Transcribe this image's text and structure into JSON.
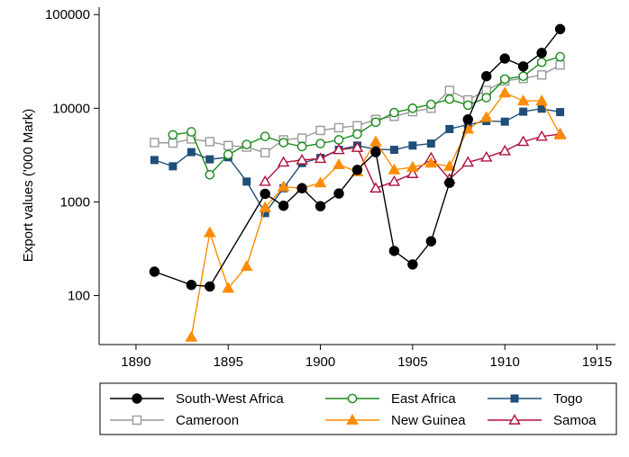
{
  "chart_data": {
    "type": "line",
    "title": "",
    "xlabel": "",
    "ylabel": "Export values ('000 Mark)",
    "xlim": [
      1888,
      1916
    ],
    "ylim": [
      30,
      120000
    ],
    "yscale": "log",
    "xticks": [
      1890,
      1895,
      1900,
      1905,
      1910,
      1915
    ],
    "yticks": [
      100,
      1000,
      10000,
      100000
    ],
    "xtick_labels": [
      "1890",
      "1895",
      "1900",
      "1905",
      "1910",
      "1915"
    ],
    "ytick_labels": [
      "100",
      "1000",
      "10000",
      "100000"
    ],
    "grid": false,
    "legend_position": "bottom",
    "series": [
      {
        "name": "South-West Africa",
        "color": "#000000",
        "marker": "circle-filled",
        "points": [
          [
            1891,
            180
          ],
          [
            1893,
            130
          ],
          [
            1894,
            125
          ],
          [
            1897,
            1220
          ],
          [
            1898,
            910
          ],
          [
            1899,
            1400
          ],
          [
            1900,
            900
          ],
          [
            1901,
            1230
          ],
          [
            1902,
            2200
          ],
          [
            1903,
            3400
          ],
          [
            1904,
            300
          ],
          [
            1905,
            215
          ],
          [
            1906,
            380
          ],
          [
            1907,
            1600
          ],
          [
            1908,
            7600
          ],
          [
            1909,
            22000
          ],
          [
            1910,
            34000
          ],
          [
            1911,
            28000
          ],
          [
            1912,
            39000
          ],
          [
            1913,
            70000
          ]
        ]
      },
      {
        "name": "East Africa",
        "color": "#1a8a1a",
        "marker": "circle-hollow",
        "points": [
          [
            1892,
            5200
          ],
          [
            1893,
            5600
          ],
          [
            1894,
            1950
          ],
          [
            1895,
            3200
          ],
          [
            1896,
            4100
          ],
          [
            1897,
            5000
          ],
          [
            1898,
            4300
          ],
          [
            1899,
            3900
          ],
          [
            1900,
            4200
          ],
          [
            1901,
            4600
          ],
          [
            1902,
            5300
          ],
          [
            1903,
            7100
          ],
          [
            1904,
            9000
          ],
          [
            1905,
            10000
          ],
          [
            1906,
            11000
          ],
          [
            1907,
            12500
          ],
          [
            1908,
            10800
          ],
          [
            1909,
            13000
          ],
          [
            1910,
            20500
          ],
          [
            1911,
            22000
          ],
          [
            1912,
            31000
          ],
          [
            1913,
            35500
          ]
        ]
      },
      {
        "name": "Togo",
        "color": "#1f4e79",
        "marker": "square-filled",
        "points": [
          [
            1891,
            2800
          ],
          [
            1892,
            2400
          ],
          [
            1893,
            3400
          ],
          [
            1894,
            2850
          ],
          [
            1895,
            3000
          ],
          [
            1896,
            1650
          ],
          [
            1897,
            760
          ],
          [
            1898,
            1400
          ],
          [
            1899,
            2600
          ],
          [
            1900,
            2950
          ],
          [
            1901,
            3600
          ],
          [
            1902,
            4000
          ],
          [
            1903,
            3650
          ],
          [
            1904,
            3600
          ],
          [
            1905,
            4000
          ],
          [
            1906,
            4200
          ],
          [
            1907,
            6000
          ],
          [
            1908,
            6700
          ],
          [
            1909,
            7300
          ],
          [
            1910,
            7200
          ],
          [
            1911,
            9200
          ],
          [
            1912,
            9900
          ],
          [
            1913,
            9100
          ]
        ]
      },
      {
        "name": "Cameroon",
        "color": "#9a9a9a",
        "marker": "square-hollow",
        "points": [
          [
            1891,
            4300
          ],
          [
            1892,
            4250
          ],
          [
            1893,
            4700
          ],
          [
            1894,
            4400
          ],
          [
            1895,
            4000
          ],
          [
            1896,
            3850
          ],
          [
            1897,
            3350
          ],
          [
            1898,
            4600
          ],
          [
            1899,
            4800
          ],
          [
            1900,
            5800
          ],
          [
            1901,
            6200
          ],
          [
            1902,
            6500
          ],
          [
            1903,
            7600
          ],
          [
            1904,
            8200
          ],
          [
            1905,
            9200
          ],
          [
            1906,
            10000
          ],
          [
            1907,
            15500
          ],
          [
            1908,
            12300
          ],
          [
            1909,
            15500
          ],
          [
            1910,
            19600
          ],
          [
            1911,
            20800
          ],
          [
            1912,
            22700
          ],
          [
            1913,
            29000
          ]
        ]
      },
      {
        "name": "New Guinea",
        "color": "#ff8c00",
        "marker": "triangle-filled",
        "points": [
          [
            1893,
            36
          ],
          [
            1894,
            470
          ],
          [
            1895,
            120
          ],
          [
            1896,
            205
          ],
          [
            1897,
            870
          ],
          [
            1898,
            1450
          ],
          [
            1899,
            1400
          ],
          [
            1900,
            1600
          ],
          [
            1901,
            2500
          ],
          [
            1902,
            2100
          ],
          [
            1903,
            4400
          ],
          [
            1904,
            2200
          ],
          [
            1905,
            2350
          ],
          [
            1906,
            2600
          ],
          [
            1907,
            2400
          ],
          [
            1908,
            6000
          ],
          [
            1909,
            8000
          ],
          [
            1910,
            14600
          ],
          [
            1911,
            12000
          ],
          [
            1912,
            12000
          ],
          [
            1913,
            5200
          ]
        ]
      },
      {
        "name": "Samoa",
        "color": "#b0103c",
        "marker": "triangle-hollow",
        "points": [
          [
            1897,
            1650
          ],
          [
            1898,
            2650
          ],
          [
            1899,
            2800
          ],
          [
            1900,
            2900
          ],
          [
            1901,
            3600
          ],
          [
            1902,
            3800
          ],
          [
            1903,
            1400
          ],
          [
            1904,
            1650
          ],
          [
            1905,
            2000
          ],
          [
            1906,
            2950
          ],
          [
            1907,
            1750
          ],
          [
            1908,
            2650
          ],
          [
            1909,
            3000
          ],
          [
            1910,
            3500
          ],
          [
            1911,
            4400
          ],
          [
            1912,
            5000
          ],
          [
            1913,
            5300
          ]
        ]
      }
    ]
  }
}
